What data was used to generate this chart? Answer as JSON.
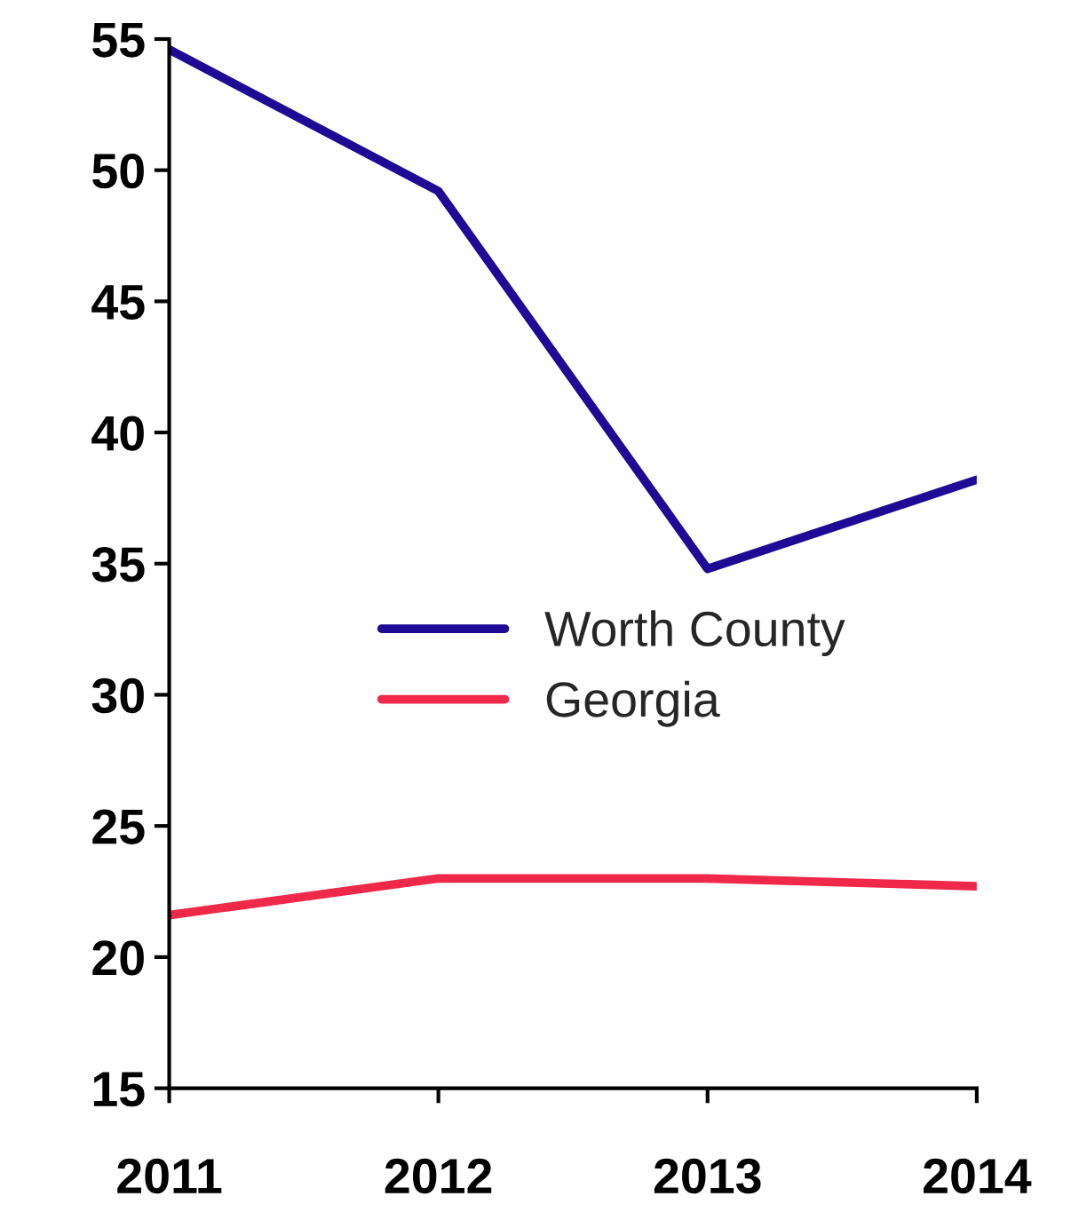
{
  "chart_data": {
    "type": "line",
    "x": [
      2011,
      2012,
      2013,
      2014
    ],
    "series": [
      {
        "name": "Worth County",
        "color": "#1f0a96",
        "values": [
          54.6,
          49.2,
          34.8,
          38.2
        ]
      },
      {
        "name": "Georgia",
        "color": "#f0284a",
        "values": [
          21.6,
          23.0,
          23.0,
          22.7
        ]
      }
    ],
    "xlim": [
      2011,
      2014
    ],
    "xticks": [
      2011,
      2012,
      2013,
      2014
    ],
    "ylim": [
      15,
      55
    ],
    "yticks": [
      15,
      20,
      25,
      30,
      35,
      40,
      45,
      50,
      55
    ],
    "grid": false,
    "legend": "center",
    "marker": "none",
    "line_style": "solid"
  }
}
